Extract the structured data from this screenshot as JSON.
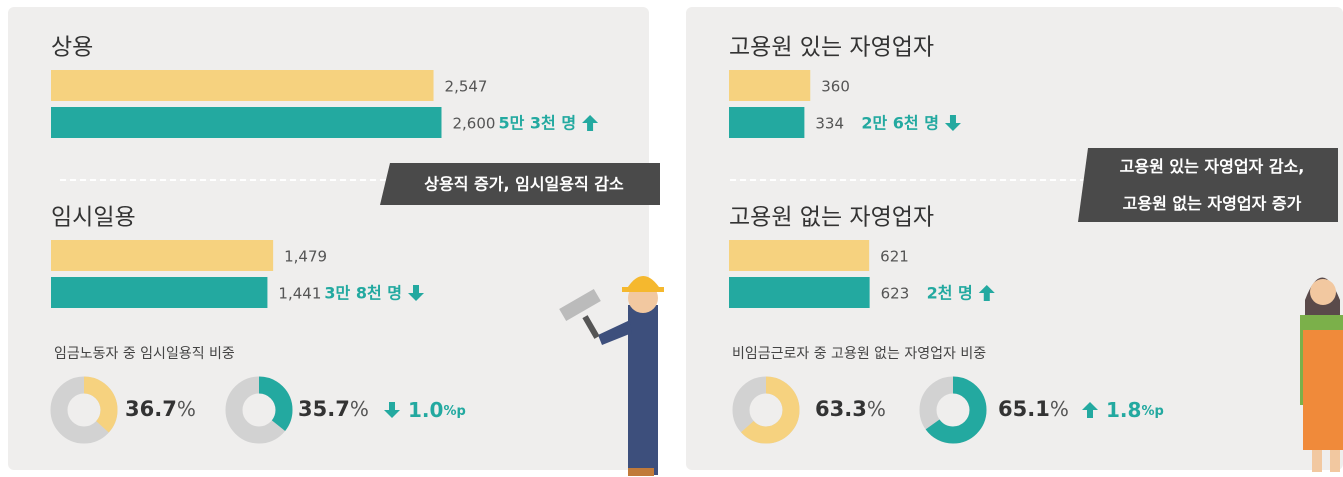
{
  "panels": [
    {
      "colors": [
        "#f6d27f",
        "#23a9a0"
      ],
      "xlim": [
        0,
        2630
      ],
      "groups": [
        {
          "title": "상용",
          "bars": [
            {
              "value": 2547,
              "label": "2,547"
            },
            {
              "value": 2600,
              "label": "2,600",
              "change": "5만 3천 명",
              "direction": "up"
            }
          ]
        },
        {
          "title": "임시일용",
          "bars": [
            {
              "value": 1479,
              "label": "1,479"
            },
            {
              "value": 1441,
              "label": "1,441",
              "change": "3만 8천 명",
              "direction": "down"
            }
          ]
        }
      ],
      "callout": [
        "상용직 증가, 임시일용직 감소"
      ],
      "ratio": {
        "title": "임금노동자 중 임시일용직 비중",
        "unit": "%",
        "values": [
          36.7,
          35.7
        ],
        "change": "1.0",
        "change_unit": "%p",
        "direction": "down"
      }
    },
    {
      "colors": [
        "#f6d27f",
        "#23a9a0"
      ],
      "xlim": [
        0,
        1750
      ],
      "groups": [
        {
          "title": "고용원 있는 자영업자",
          "bars": [
            {
              "value": 360,
              "label": "360"
            },
            {
              "value": 334,
              "label": "334",
              "change": "2만 6천 명",
              "direction": "down"
            }
          ]
        },
        {
          "title": "고용원 없는 자영업자",
          "bars": [
            {
              "value": 621,
              "label": "621"
            },
            {
              "value": 623,
              "label": "623",
              "change": "2천 명",
              "direction": "up"
            }
          ]
        }
      ],
      "callout": [
        "고용원 있는 자영업자 감소,",
        "고용원 없는 자영업자 증가"
      ],
      "ratio": {
        "title": "비임금근로자 중 고용원 없는 자영업자 비중",
        "unit": "%",
        "values": [
          63.3,
          65.1
        ],
        "change": "1.8",
        "change_unit": "%p",
        "direction": "up"
      }
    }
  ]
}
